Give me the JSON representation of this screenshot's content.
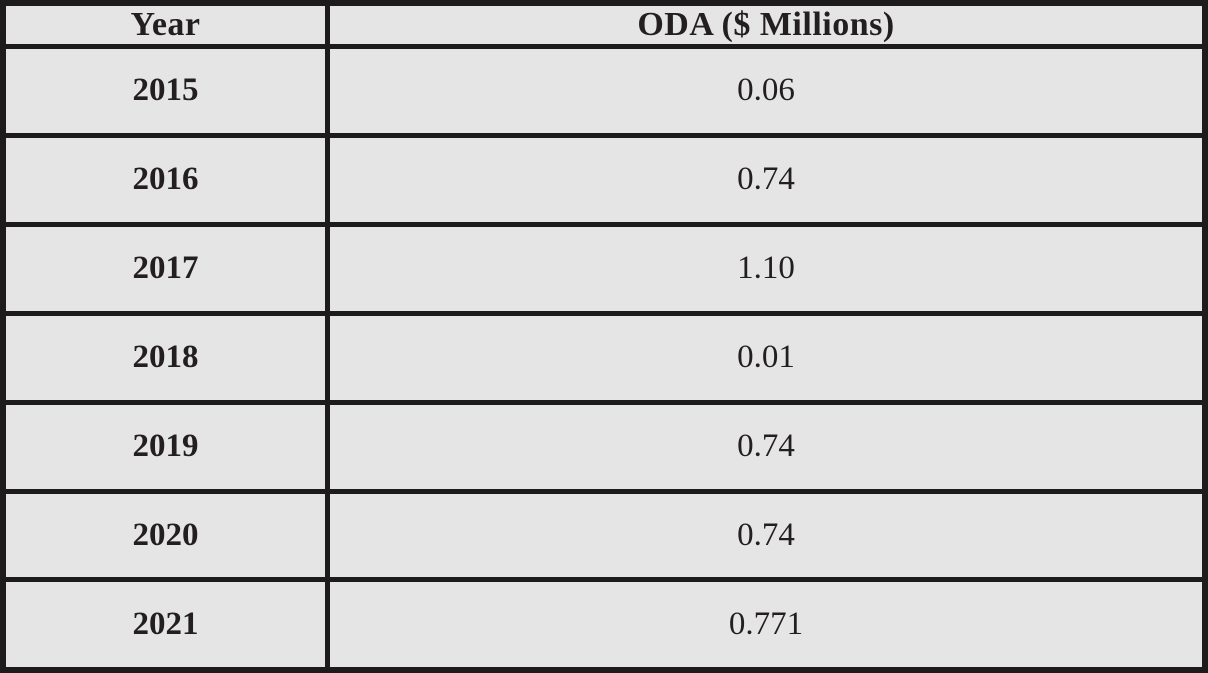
{
  "table": {
    "headers": [
      "Year",
      "ODA ($ Millions)"
    ],
    "rows": [
      {
        "year": "2015",
        "oda": "0.06"
      },
      {
        "year": "2016",
        "oda": "0.74"
      },
      {
        "year": "2017",
        "oda": "1.10"
      },
      {
        "year": "2018",
        "oda": "0.01"
      },
      {
        "year": "2019",
        "oda": "0.74"
      },
      {
        "year": "2020",
        "oda": "0.74"
      },
      {
        "year": "2021",
        "oda": "0.771"
      }
    ]
  },
  "chart_data": {
    "type": "table",
    "title": "",
    "columns": [
      "Year",
      "ODA ($ Millions)"
    ],
    "categories": [
      "2015",
      "2016",
      "2017",
      "2018",
      "2019",
      "2020",
      "2021"
    ],
    "values": [
      0.06,
      0.74,
      1.1,
      0.01,
      0.74,
      0.74,
      0.771
    ],
    "xlabel": "Year",
    "ylabel": "ODA ($ Millions)"
  },
  "colors": {
    "cell_background": "#e6e5e6",
    "border": "#1d1b1c",
    "text": "#231f20"
  }
}
